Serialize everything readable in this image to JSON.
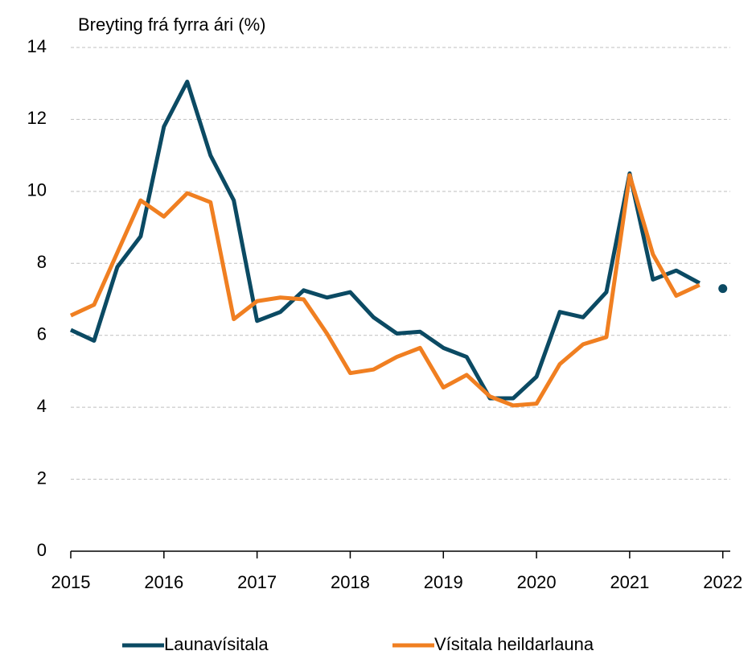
{
  "chart_data": {
    "type": "line",
    "ylabel": "Breyting frá fyrra ári (%)",
    "x": [
      2015,
      2015.25,
      2015.5,
      2015.75,
      2016,
      2016.25,
      2016.5,
      2016.75,
      2017,
      2017.25,
      2017.5,
      2017.75,
      2018,
      2018.25,
      2018.5,
      2018.75,
      2019,
      2019.25,
      2019.5,
      2019.75,
      2020,
      2020.25,
      2020.5,
      2020.75,
      2021,
      2021.25,
      2021.5,
      2021.75
    ],
    "series": [
      {
        "name": "Launavísitala",
        "color": "#0b4a63",
        "values": [
          6.15,
          5.85,
          7.9,
          8.75,
          11.8,
          13.05,
          11.0,
          9.75,
          6.4,
          6.65,
          7.25,
          7.05,
          7.2,
          6.5,
          6.05,
          6.1,
          5.65,
          5.4,
          4.25,
          4.25,
          4.85,
          6.65,
          6.5,
          7.2,
          10.5,
          7.55,
          7.8,
          7.45
        ]
      },
      {
        "name": "Vísitala heildarlauna",
        "color": "#f07f21",
        "values": [
          6.55,
          6.85,
          8.3,
          9.75,
          9.3,
          9.95,
          9.7,
          6.45,
          6.95,
          7.05,
          7.0,
          6.05,
          4.95,
          5.05,
          5.4,
          5.65,
          4.55,
          4.9,
          4.3,
          4.05,
          4.1,
          5.2,
          5.75,
          5.95,
          10.45,
          8.25,
          7.1,
          7.4
        ]
      },
      {
        "color": "#0b4a63",
        "x": [
          2022
        ],
        "values": [
          7.3
        ]
      }
    ],
    "xlim": [
      2015,
      2022.08
    ],
    "xticks": [
      2015,
      2016,
      2017,
      2018,
      2019,
      2020,
      2021,
      2022
    ],
    "ylim": [
      0,
      14
    ],
    "yticks": [
      0,
      2,
      4,
      6,
      8,
      10,
      12,
      14
    ],
    "grid": true
  }
}
